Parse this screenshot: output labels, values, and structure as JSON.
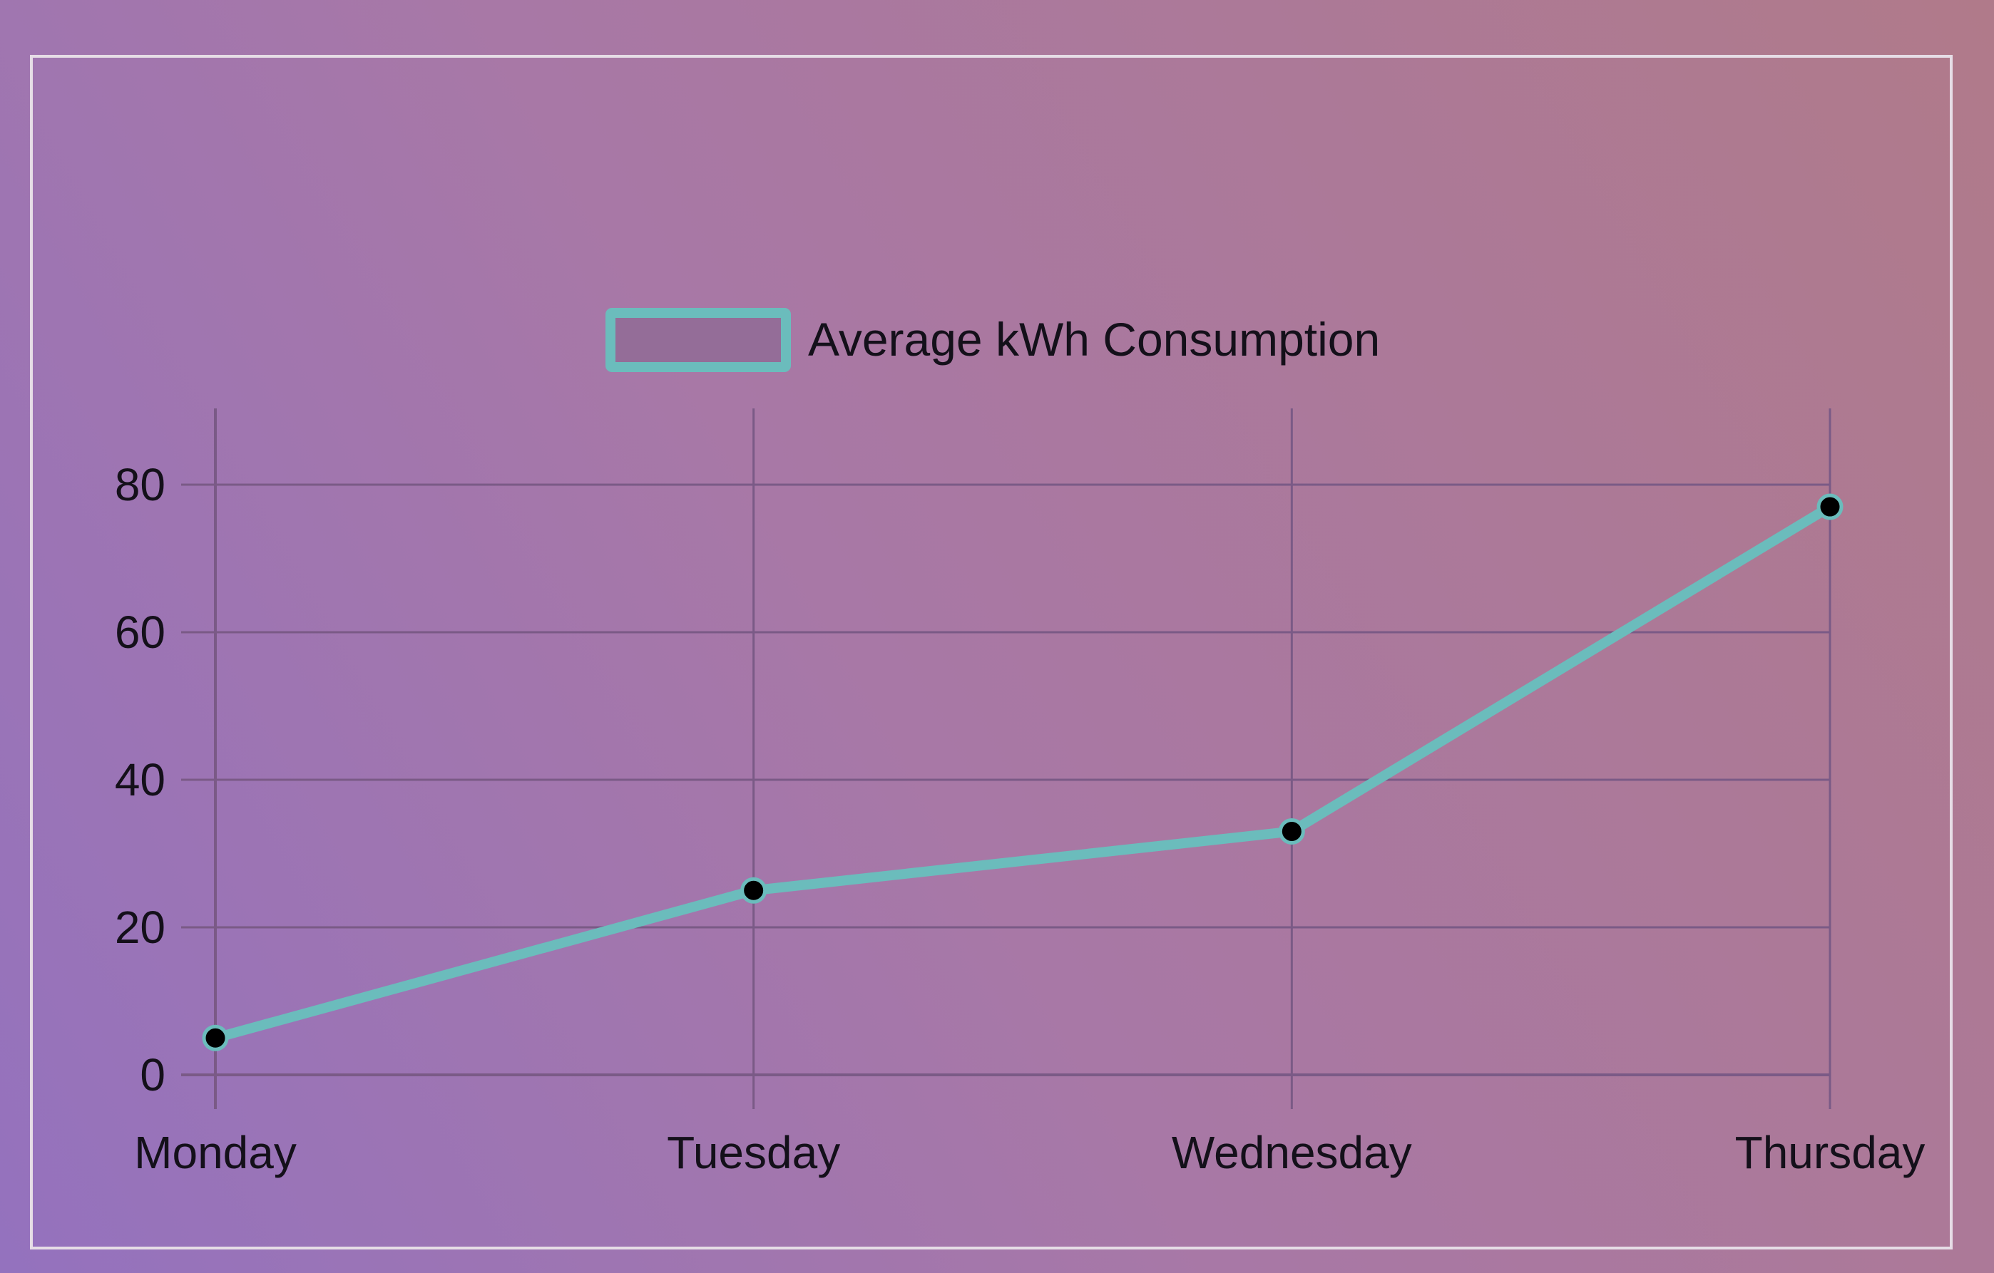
{
  "colors": {
    "line": "#6bbcbc",
    "point_fill": "#000000",
    "grid": "#7a5a86",
    "text": "#14101a",
    "legend_fill": "#946d98"
  },
  "legend": {
    "label": "Average kWh Consumption",
    "position": "top-center"
  },
  "chart_data": {
    "type": "line",
    "categories": [
      "Monday",
      "Tuesday",
      "Wednesday",
      "Thursday"
    ],
    "series": [
      {
        "name": "Average kWh Consumption",
        "values": [
          5,
          25,
          33,
          77
        ]
      }
    ],
    "yticks": [
      "0",
      "20",
      "40",
      "60",
      "80"
    ],
    "ylim": [
      0,
      90
    ],
    "grid": true,
    "legend": "top-center"
  }
}
